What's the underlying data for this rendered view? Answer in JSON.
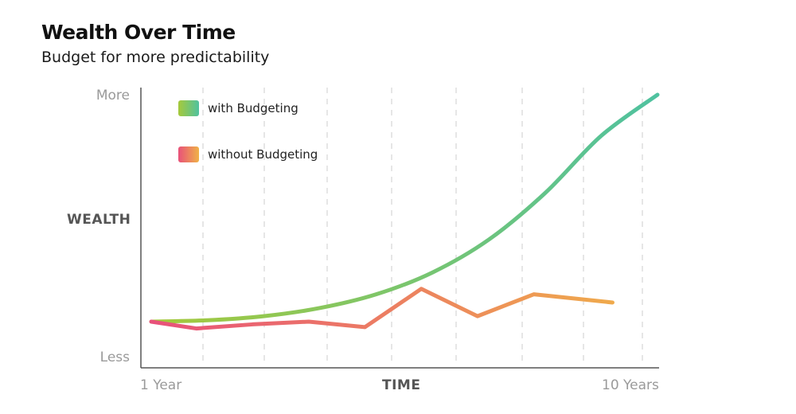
{
  "chart_data": {
    "type": "line",
    "title": "Wealth Over Time",
    "subtitle": "Budget for more predictability",
    "xlabel": "TIME",
    "ylabel": "WEALTH",
    "x_ticks": {
      "start": "1 Year",
      "end": "10 Years"
    },
    "y_ticks": {
      "top": "More",
      "bottom": "Less"
    },
    "x": [
      1,
      2,
      3,
      4,
      5,
      6,
      7,
      8,
      9,
      10
    ],
    "ylim": [
      0,
      100
    ],
    "grid": true,
    "legend_position": "top-left",
    "series": [
      {
        "name": "with Budgeting",
        "values": [
          17,
          17.5,
          19,
          22,
          27,
          35,
          47,
          64,
          85,
          100
        ],
        "color_start": "#a6c93a",
        "color_end": "#4fc2a0"
      },
      {
        "name": "without Budgeting",
        "values": [
          17,
          14.5,
          16,
          17,
          15,
          29,
          19,
          27,
          24
        ],
        "x": [
          1,
          1.8,
          2.8,
          3.8,
          4.8,
          5.8,
          6.8,
          7.8,
          9.2
        ],
        "color_start": "#e8517a",
        "color_end": "#f0b247"
      }
    ]
  },
  "colors": {
    "axis": "#555555",
    "grid": "#d9d9d9",
    "tick_text": "#9a9a9a",
    "label_text": "#555555"
  }
}
